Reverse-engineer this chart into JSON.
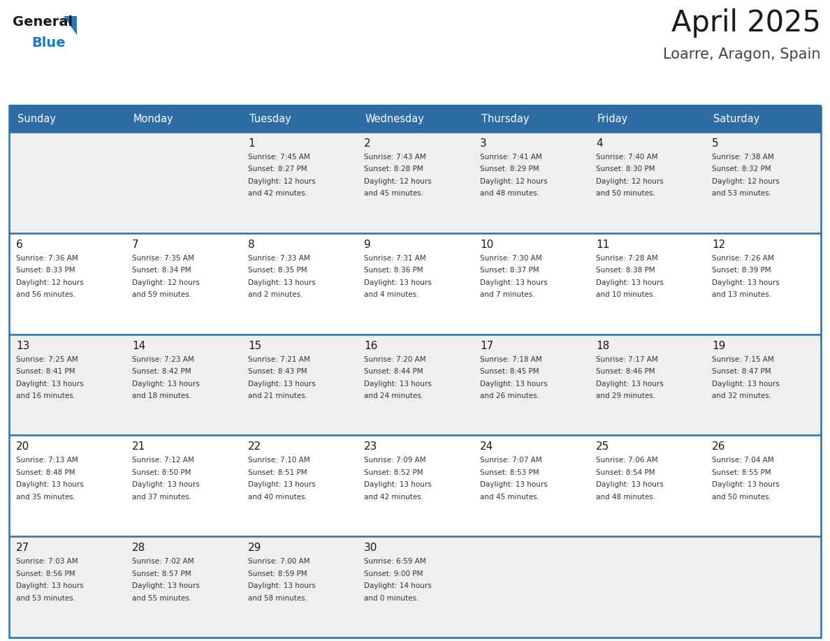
{
  "title": "April 2025",
  "subtitle": "Loarre, Aragon, Spain",
  "days_of_week": [
    "Sunday",
    "Monday",
    "Tuesday",
    "Wednesday",
    "Thursday",
    "Friday",
    "Saturday"
  ],
  "header_bg": "#2E6DA4",
  "header_text_color": "#FFFFFF",
  "cell_bg_odd": "#EFEFEF",
  "cell_bg_even": "#FFFFFF",
  "cell_border_color": "#2E6DA4",
  "day_number_color": "#1a1a1a",
  "text_color": "#333333",
  "title_color": "#1a1a1a",
  "subtitle_color": "#444444",
  "logo_general_color": "#1a1a1a",
  "logo_blue_color": "#1E7AC1",
  "weeks": [
    {
      "days": [
        {
          "date": "",
          "info": ""
        },
        {
          "date": "",
          "info": ""
        },
        {
          "date": "1",
          "info": "Sunrise: 7:45 AM\nSunset: 8:27 PM\nDaylight: 12 hours\nand 42 minutes."
        },
        {
          "date": "2",
          "info": "Sunrise: 7:43 AM\nSunset: 8:28 PM\nDaylight: 12 hours\nand 45 minutes."
        },
        {
          "date": "3",
          "info": "Sunrise: 7:41 AM\nSunset: 8:29 PM\nDaylight: 12 hours\nand 48 minutes."
        },
        {
          "date": "4",
          "info": "Sunrise: 7:40 AM\nSunset: 8:30 PM\nDaylight: 12 hours\nand 50 minutes."
        },
        {
          "date": "5",
          "info": "Sunrise: 7:38 AM\nSunset: 8:32 PM\nDaylight: 12 hours\nand 53 minutes."
        }
      ]
    },
    {
      "days": [
        {
          "date": "6",
          "info": "Sunrise: 7:36 AM\nSunset: 8:33 PM\nDaylight: 12 hours\nand 56 minutes."
        },
        {
          "date": "7",
          "info": "Sunrise: 7:35 AM\nSunset: 8:34 PM\nDaylight: 12 hours\nand 59 minutes."
        },
        {
          "date": "8",
          "info": "Sunrise: 7:33 AM\nSunset: 8:35 PM\nDaylight: 13 hours\nand 2 minutes."
        },
        {
          "date": "9",
          "info": "Sunrise: 7:31 AM\nSunset: 8:36 PM\nDaylight: 13 hours\nand 4 minutes."
        },
        {
          "date": "10",
          "info": "Sunrise: 7:30 AM\nSunset: 8:37 PM\nDaylight: 13 hours\nand 7 minutes."
        },
        {
          "date": "11",
          "info": "Sunrise: 7:28 AM\nSunset: 8:38 PM\nDaylight: 13 hours\nand 10 minutes."
        },
        {
          "date": "12",
          "info": "Sunrise: 7:26 AM\nSunset: 8:39 PM\nDaylight: 13 hours\nand 13 minutes."
        }
      ]
    },
    {
      "days": [
        {
          "date": "13",
          "info": "Sunrise: 7:25 AM\nSunset: 8:41 PM\nDaylight: 13 hours\nand 16 minutes."
        },
        {
          "date": "14",
          "info": "Sunrise: 7:23 AM\nSunset: 8:42 PM\nDaylight: 13 hours\nand 18 minutes."
        },
        {
          "date": "15",
          "info": "Sunrise: 7:21 AM\nSunset: 8:43 PM\nDaylight: 13 hours\nand 21 minutes."
        },
        {
          "date": "16",
          "info": "Sunrise: 7:20 AM\nSunset: 8:44 PM\nDaylight: 13 hours\nand 24 minutes."
        },
        {
          "date": "17",
          "info": "Sunrise: 7:18 AM\nSunset: 8:45 PM\nDaylight: 13 hours\nand 26 minutes."
        },
        {
          "date": "18",
          "info": "Sunrise: 7:17 AM\nSunset: 8:46 PM\nDaylight: 13 hours\nand 29 minutes."
        },
        {
          "date": "19",
          "info": "Sunrise: 7:15 AM\nSunset: 8:47 PM\nDaylight: 13 hours\nand 32 minutes."
        }
      ]
    },
    {
      "days": [
        {
          "date": "20",
          "info": "Sunrise: 7:13 AM\nSunset: 8:48 PM\nDaylight: 13 hours\nand 35 minutes."
        },
        {
          "date": "21",
          "info": "Sunrise: 7:12 AM\nSunset: 8:50 PM\nDaylight: 13 hours\nand 37 minutes."
        },
        {
          "date": "22",
          "info": "Sunrise: 7:10 AM\nSunset: 8:51 PM\nDaylight: 13 hours\nand 40 minutes."
        },
        {
          "date": "23",
          "info": "Sunrise: 7:09 AM\nSunset: 8:52 PM\nDaylight: 13 hours\nand 42 minutes."
        },
        {
          "date": "24",
          "info": "Sunrise: 7:07 AM\nSunset: 8:53 PM\nDaylight: 13 hours\nand 45 minutes."
        },
        {
          "date": "25",
          "info": "Sunrise: 7:06 AM\nSunset: 8:54 PM\nDaylight: 13 hours\nand 48 minutes."
        },
        {
          "date": "26",
          "info": "Sunrise: 7:04 AM\nSunset: 8:55 PM\nDaylight: 13 hours\nand 50 minutes."
        }
      ]
    },
    {
      "days": [
        {
          "date": "27",
          "info": "Sunrise: 7:03 AM\nSunset: 8:56 PM\nDaylight: 13 hours\nand 53 minutes."
        },
        {
          "date": "28",
          "info": "Sunrise: 7:02 AM\nSunset: 8:57 PM\nDaylight: 13 hours\nand 55 minutes."
        },
        {
          "date": "29",
          "info": "Sunrise: 7:00 AM\nSunset: 8:59 PM\nDaylight: 13 hours\nand 58 minutes."
        },
        {
          "date": "30",
          "info": "Sunrise: 6:59 AM\nSunset: 9:00 PM\nDaylight: 14 hours\nand 0 minutes."
        },
        {
          "date": "",
          "info": ""
        },
        {
          "date": "",
          "info": ""
        },
        {
          "date": "",
          "info": ""
        }
      ]
    }
  ]
}
